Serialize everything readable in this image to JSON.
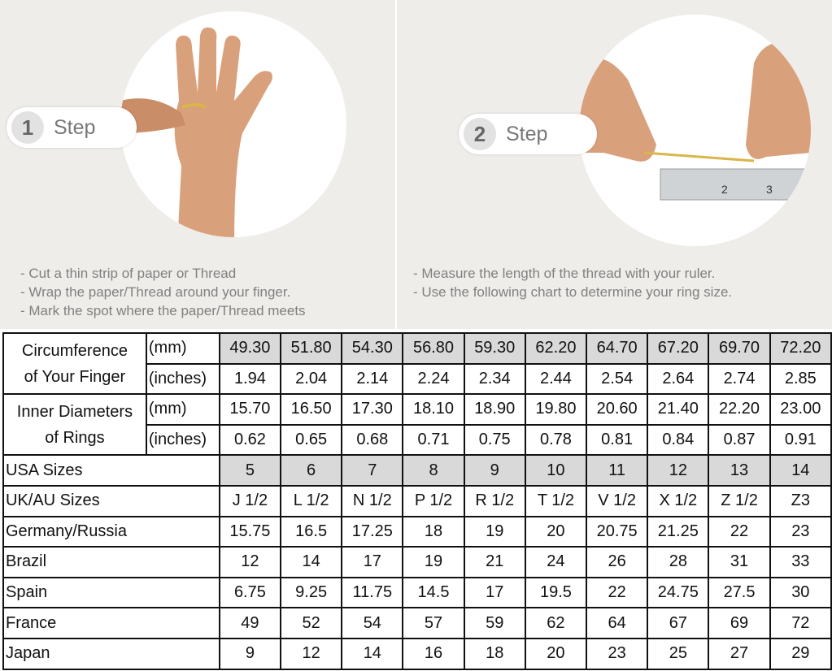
{
  "steps": [
    {
      "number": "1",
      "label": "Step",
      "instructions": [
        "- Cut a thin strip of paper or Thread",
        "- Wrap the paper/Thread around your finger.",
        "- Mark the spot where the paper/Thread meets"
      ]
    },
    {
      "number": "2",
      "label": "Step",
      "instructions": [
        "- Measure the length of the thread with your ruler.",
        "- Use the following chart to determine your ring size."
      ]
    }
  ],
  "table": {
    "circumference": {
      "label_line1": "Circumference",
      "label_line2": "of Your Finger",
      "unit_mm": "(mm)",
      "unit_in": "(inches)",
      "mm": [
        "49.30",
        "51.80",
        "54.30",
        "56.80",
        "59.30",
        "62.20",
        "64.70",
        "67.20",
        "69.70",
        "72.20"
      ],
      "inches": [
        "1.94",
        "2.04",
        "2.14",
        "2.24",
        "2.34",
        "2.44",
        "2.54",
        "2.64",
        "2.74",
        "2.85"
      ]
    },
    "diameter": {
      "label_line1": "Inner Diameters",
      "label_line2": "of Rings",
      "unit_mm": "(mm)",
      "unit_in": "(inches)",
      "mm": [
        "15.70",
        "16.50",
        "17.30",
        "18.10",
        "18.90",
        "19.80",
        "20.60",
        "21.40",
        "22.20",
        "23.00"
      ],
      "inches": [
        "0.62",
        "0.65",
        "0.68",
        "0.71",
        "0.75",
        "0.78",
        "0.81",
        "0.84",
        "0.87",
        "0.91"
      ]
    },
    "rows": [
      {
        "label": "USA Sizes",
        "shaded": true,
        "values": [
          "5",
          "6",
          "7",
          "8",
          "9",
          "10",
          "11",
          "12",
          "13",
          "14"
        ]
      },
      {
        "label": "UK/AU Sizes",
        "values": [
          "J 1/2",
          "L 1/2",
          "N 1/2",
          "P 1/2",
          "R 1/2",
          "T 1/2",
          "V 1/2",
          "X 1/2",
          "Z 1/2",
          "Z3"
        ]
      },
      {
        "label": "Germany/Russia",
        "values": [
          "15.75",
          "16.5",
          "17.25",
          "18",
          "19",
          "20",
          "20.75",
          "21.25",
          "22",
          "23"
        ]
      },
      {
        "label": "Brazil",
        "values": [
          "12",
          "14",
          "17",
          "19",
          "21",
          "24",
          "26",
          "28",
          "31",
          "33"
        ]
      },
      {
        "label": "Spain",
        "values": [
          "6.75",
          "9.25",
          "11.75",
          "14.5",
          "17",
          "19.5",
          "22",
          "24.75",
          "27.5",
          "30"
        ]
      },
      {
        "label": "France",
        "values": [
          "49",
          "52",
          "54",
          "57",
          "59",
          "62",
          "64",
          "67",
          "69",
          "72"
        ]
      },
      {
        "label": "Japan",
        "values": [
          "9",
          "12",
          "14",
          "16",
          "18",
          "20",
          "23",
          "25",
          "27",
          "29"
        ]
      }
    ]
  },
  "colors": {
    "shade": "#d9d9d9",
    "background": "#efedea"
  }
}
